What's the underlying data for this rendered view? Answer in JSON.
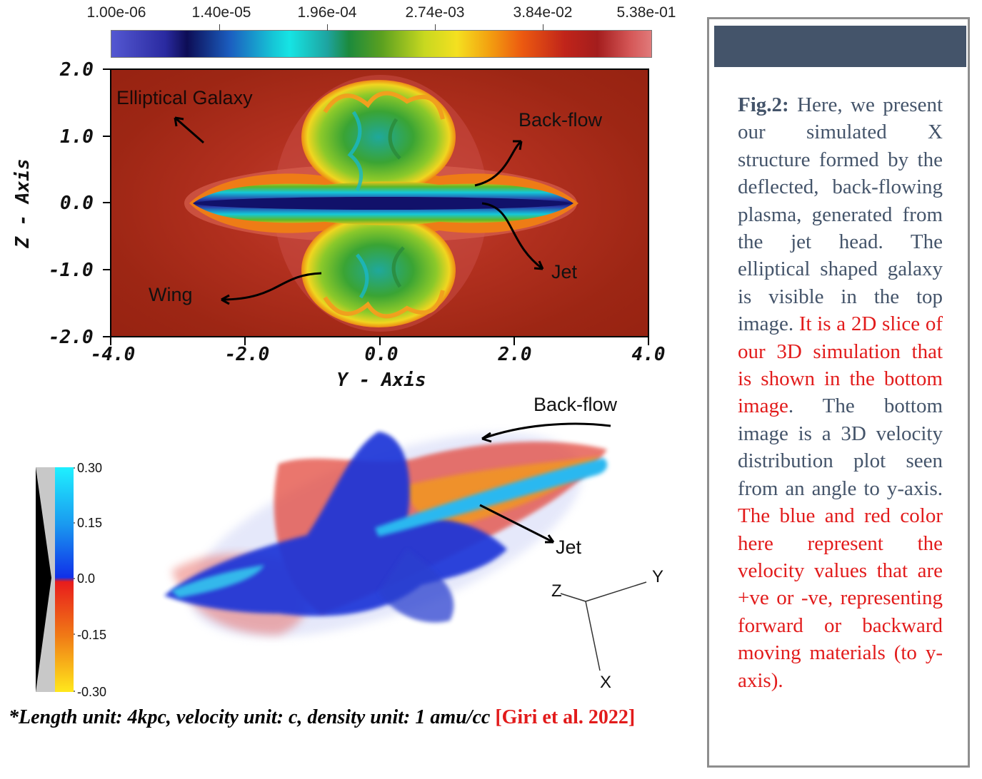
{
  "colorbar": {
    "ticks": [
      "1.00e-06",
      "1.40e-05",
      "1.96e-04",
      "2.74e-03",
      "3.84e-02",
      "5.38e-01"
    ]
  },
  "top_plot": {
    "y_axis_title": "Z - Axis",
    "x_axis_title": "Y - Axis",
    "z_ticks": [
      "2.0",
      "1.0",
      "0.0",
      "-1.0",
      "-2.0"
    ],
    "y_ticks": [
      "-4.0",
      "-2.0",
      "0.0",
      "2.0",
      "4.0"
    ],
    "annotations": {
      "galaxy": "Elliptical Galaxy",
      "backflow": "Back-flow",
      "jet": "Jet",
      "wing": "Wing"
    }
  },
  "bottom_plot": {
    "annotations": {
      "backflow": "Back-flow",
      "jet": "Jet"
    },
    "axes_triad": {
      "z": "Z",
      "y": "Y",
      "x": "X"
    },
    "velocity_ticks": [
      "0.30",
      "0.15",
      "0.0",
      "-0.15",
      "-0.30"
    ]
  },
  "footnote": {
    "text": "*Length unit: 4kpc, velocity unit: c, density unit: 1 amu/cc ",
    "reference": "[Giri et al. 2022]"
  },
  "caption": {
    "label": "Fig.2:",
    "part1": " Here, we present our simulated X structure formed by the deflected, back-flowing plasma, generated from the jet head. The elliptical shaped galaxy is visible in the top image. ",
    "red1": "It is a 2D slice of our 3D simulation that is shown in the bottom image",
    "part2": ". The bottom image is a 3D velocity distribution plot seen from an angle to y-axis. ",
    "red2": "The blue and red color here represent the velocity values that are +ve or -ve, representing forward or backward moving materials (to y-axis)."
  },
  "colors": {
    "header_bar": "#44546a",
    "caption_text": "#44546a",
    "highlight_red": "#e21b1b"
  }
}
